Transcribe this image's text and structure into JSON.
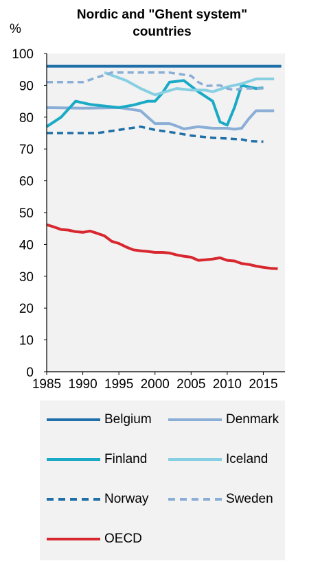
{
  "chart_data": {
    "type": "line",
    "title": "Nordic and \"Ghent system\" countries",
    "ylabel": "%",
    "xlim": [
      1985,
      2018
    ],
    "ylim": [
      0,
      100
    ],
    "x_ticks": [
      1985,
      1990,
      1995,
      2000,
      2005,
      2010,
      2015
    ],
    "y_ticks": [
      0,
      10,
      20,
      30,
      40,
      50,
      60,
      70,
      80,
      90,
      100
    ],
    "grid": false,
    "legend_position": "bottom",
    "series": [
      {
        "name": "Belgium",
        "color": "#1f6fa8",
        "dash": "solid",
        "points": [
          [
            1985,
            96
          ],
          [
            2017.5,
            96
          ]
        ]
      },
      {
        "name": "Denmark",
        "color": "#8aaed6",
        "dash": "solid",
        "points": [
          [
            1985,
            83
          ],
          [
            1990,
            82.8
          ],
          [
            1995,
            83
          ],
          [
            1998,
            82
          ],
          [
            2000,
            78
          ],
          [
            2002,
            78
          ],
          [
            2003,
            77.2
          ],
          [
            2004,
            76.3
          ],
          [
            2006,
            77
          ],
          [
            2008,
            76.5
          ],
          [
            2010,
            76.5
          ],
          [
            2011,
            76.2
          ],
          [
            2012,
            76.5
          ],
          [
            2013,
            79.5
          ],
          [
            2014,
            82
          ],
          [
            2016.5,
            82
          ]
        ]
      },
      {
        "name": "Finland",
        "color": "#1aaac6",
        "dash": "solid",
        "points": [
          [
            1985,
            77
          ],
          [
            1987,
            80
          ],
          [
            1989,
            85
          ],
          [
            1991,
            84
          ],
          [
            1993,
            83.5
          ],
          [
            1995,
            83
          ],
          [
            1997,
            83.8
          ],
          [
            1999,
            85
          ],
          [
            2000,
            85
          ],
          [
            2001,
            87.5
          ],
          [
            2002,
            91
          ],
          [
            2004,
            91.5
          ],
          [
            2006,
            88
          ],
          [
            2008,
            85
          ],
          [
            2009,
            78.5
          ],
          [
            2010,
            77.5
          ],
          [
            2011,
            83
          ],
          [
            2012,
            90
          ],
          [
            2014,
            89
          ],
          [
            2015,
            89.2
          ]
        ]
      },
      {
        "name": "Iceland",
        "color": "#87cfe2",
        "dash": "solid",
        "points": [
          [
            1993,
            94
          ],
          [
            1996,
            91.5
          ],
          [
            1998,
            89
          ],
          [
            2000,
            87
          ],
          [
            2003,
            89
          ],
          [
            2005,
            88.5
          ],
          [
            2007,
            88.5
          ],
          [
            2008,
            88
          ],
          [
            2010,
            89.5
          ],
          [
            2012,
            90.5
          ],
          [
            2014,
            92
          ],
          [
            2016.5,
            92
          ]
        ]
      },
      {
        "name": "Norway",
        "color": "#1f6fa8",
        "dash": "dashed",
        "points": [
          [
            1985,
            75
          ],
          [
            1990,
            75
          ],
          [
            1992,
            75
          ],
          [
            1995,
            76
          ],
          [
            1998,
            77
          ],
          [
            2000,
            76
          ],
          [
            2003,
            75
          ],
          [
            2005,
            74.2
          ],
          [
            2008,
            73.5
          ],
          [
            2010,
            73.3
          ],
          [
            2012,
            73
          ],
          [
            2013,
            72.5
          ],
          [
            2015,
            72.3
          ]
        ]
      },
      {
        "name": "Sweden",
        "color": "#8aaed6",
        "dash": "dashed",
        "points": [
          [
            1985,
            91
          ],
          [
            1990,
            91
          ],
          [
            1992,
            92.5
          ],
          [
            1994,
            94
          ],
          [
            1998,
            94
          ],
          [
            2002,
            94
          ],
          [
            2005,
            93
          ],
          [
            2006,
            91
          ],
          [
            2007,
            89.8
          ],
          [
            2009,
            90
          ],
          [
            2010,
            89
          ],
          [
            2011,
            88.5
          ],
          [
            2012,
            89
          ],
          [
            2015,
            89
          ]
        ]
      },
      {
        "name": "OECD",
        "color": "#d7282f",
        "dash": "solid",
        "points": [
          [
            1985,
            46.2
          ],
          [
            1986,
            45.5
          ],
          [
            1987,
            44.7
          ],
          [
            1988,
            44.5
          ],
          [
            1989,
            44
          ],
          [
            1990,
            43.8
          ],
          [
            1991,
            44.2
          ],
          [
            1992,
            43.5
          ],
          [
            1993,
            42.7
          ],
          [
            1994,
            41
          ],
          [
            1995,
            40.3
          ],
          [
            1996,
            39.2
          ],
          [
            1997,
            38.3
          ],
          [
            1998,
            38
          ],
          [
            1999,
            37.8
          ],
          [
            2000,
            37.5
          ],
          [
            2001,
            37.5
          ],
          [
            2002,
            37.3
          ],
          [
            2003,
            36.7
          ],
          [
            2004,
            36.3
          ],
          [
            2005,
            36
          ],
          [
            2006,
            35
          ],
          [
            2007,
            35.2
          ],
          [
            2008,
            35.4
          ],
          [
            2009,
            35.8
          ],
          [
            2010,
            35
          ],
          [
            2011,
            34.8
          ],
          [
            2012,
            34
          ],
          [
            2013,
            33.7
          ],
          [
            2014,
            33.2
          ],
          [
            2015,
            32.8
          ],
          [
            2016,
            32.5
          ],
          [
            2017,
            32.4
          ]
        ]
      }
    ]
  }
}
